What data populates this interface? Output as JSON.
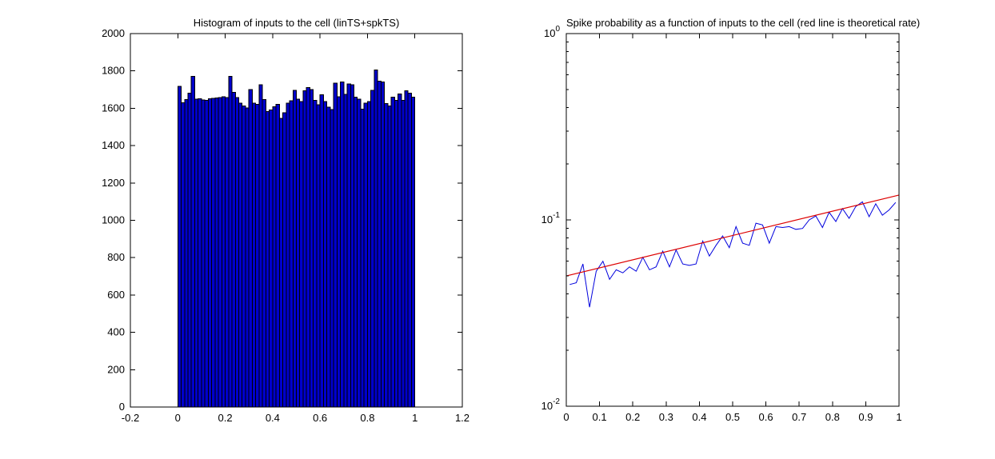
{
  "figure": {
    "background": "#ffffff",
    "axis_color": "#000000",
    "tick_label_color": "#000000"
  },
  "chart_data": [
    {
      "type": "bar",
      "title": "Histogram of inputs to the cell (linTS+spkTS)",
      "xlabel": "",
      "ylabel": "",
      "xlim": [
        -0.2,
        1.2
      ],
      "ylim": [
        0,
        2000
      ],
      "grid": "off",
      "legend": "none",
      "xticks": [
        -0.2,
        0,
        0.2,
        0.4,
        0.6,
        0.8,
        1,
        1.2
      ],
      "xtick_labels": [
        "-0.2",
        "0",
        "0.2",
        "0.4",
        "0.6",
        "0.8",
        "1",
        "1.2"
      ],
      "yticks": [
        0,
        200,
        400,
        600,
        800,
        1000,
        1200,
        1400,
        1600,
        1800,
        2000
      ],
      "ytick_labels": [
        "0",
        "200",
        "400",
        "600",
        "800",
        "1000",
        "1200",
        "1400",
        "1600",
        "1800",
        "2000"
      ],
      "bar_fill_color": "#0000cc",
      "bar_edge_color": "#000000",
      "bin_start": 0,
      "bin_end": 1,
      "n_bins": 70,
      "values": [
        1718,
        1630,
        1646,
        1680,
        1770,
        1648,
        1650,
        1645,
        1642,
        1650,
        1654,
        1655,
        1658,
        1661,
        1658,
        1770,
        1685,
        1658,
        1627,
        1613,
        1602,
        1700,
        1627,
        1622,
        1727,
        1646,
        1583,
        1592,
        1608,
        1620,
        1545,
        1575,
        1628,
        1640,
        1697,
        1648,
        1636,
        1694,
        1712,
        1700,
        1642,
        1618,
        1672,
        1637,
        1607,
        1594,
        1735,
        1662,
        1740,
        1674,
        1730,
        1727,
        1660,
        1648,
        1596,
        1627,
        1637,
        1695,
        1805,
        1745,
        1740,
        1625,
        1612,
        1660,
        1642,
        1677,
        1643,
        1694,
        1682,
        1660
      ]
    },
    {
      "type": "line",
      "title": "Spike probability as a function of inputs to the cell (red line is theoretical rate)",
      "xlabel": "",
      "ylabel": "",
      "x_scale": "linear",
      "y_scale": "log",
      "xlim": [
        0,
        1
      ],
      "ylim": [
        0.01,
        1
      ],
      "grid": "off",
      "legend": "none",
      "xticks": [
        0,
        0.1,
        0.2,
        0.3,
        0.4,
        0.5,
        0.6,
        0.7,
        0.8,
        0.9,
        1
      ],
      "xtick_labels": [
        "0",
        "0.1",
        "0.2",
        "0.3",
        "0.4",
        "0.5",
        "0.6",
        "0.7",
        "0.8",
        "0.9",
        "1"
      ],
      "ytick_exponents": [
        0,
        -1,
        -2
      ],
      "ytick_base": "10",
      "minor_tick_multipliers": [
        2,
        3,
        4,
        5,
        6,
        7,
        8,
        9
      ],
      "series": [
        {
          "name": "measured-spike-probability",
          "color": "#0000dd",
          "x": [
            0.01,
            0.03,
            0.05,
            0.07,
            0.09,
            0.11,
            0.13,
            0.15,
            0.17,
            0.19,
            0.21,
            0.23,
            0.25,
            0.27,
            0.29,
            0.31,
            0.33,
            0.35,
            0.37,
            0.39,
            0.41,
            0.43,
            0.45,
            0.47,
            0.49,
            0.51,
            0.53,
            0.55,
            0.57,
            0.59,
            0.61,
            0.63,
            0.65,
            0.67,
            0.69,
            0.71,
            0.73,
            0.75,
            0.77,
            0.79,
            0.81,
            0.83,
            0.85,
            0.87,
            0.89,
            0.91,
            0.93,
            0.95,
            0.97,
            0.99
          ],
          "y": [
            0.045,
            0.046,
            0.058,
            0.034,
            0.053,
            0.06,
            0.048,
            0.054,
            0.052,
            0.056,
            0.053,
            0.063,
            0.054,
            0.056,
            0.068,
            0.056,
            0.069,
            0.058,
            0.057,
            0.058,
            0.077,
            0.064,
            0.073,
            0.082,
            0.071,
            0.092,
            0.075,
            0.073,
            0.096,
            0.094,
            0.075,
            0.092,
            0.091,
            0.092,
            0.089,
            0.09,
            0.1,
            0.105,
            0.091,
            0.11,
            0.098,
            0.115,
            0.102,
            0.118,
            0.125,
            0.104,
            0.122,
            0.106,
            0.113,
            0.124
          ]
        },
        {
          "name": "theoretical-rate",
          "color": "#dd0000",
          "x": [
            0,
            1
          ],
          "y": [
            0.05,
            0.136
          ]
        }
      ]
    }
  ]
}
